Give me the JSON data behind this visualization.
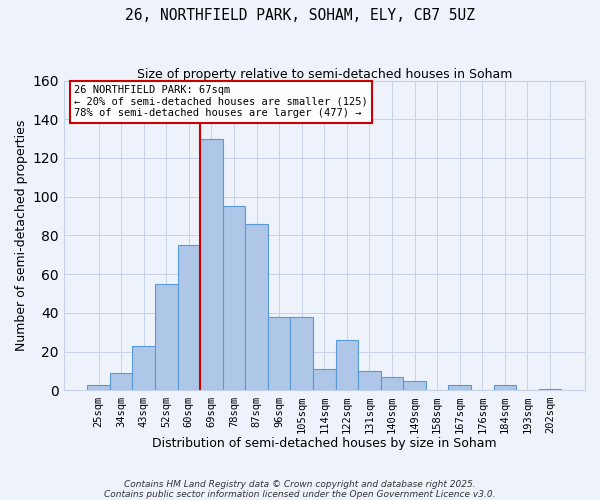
{
  "title": "26, NORTHFIELD PARK, SOHAM, ELY, CB7 5UZ",
  "subtitle": "Size of property relative to semi-detached houses in Soham",
  "xlabel": "Distribution of semi-detached houses by size in Soham",
  "ylabel": "Number of semi-detached properties",
  "bar_labels": [
    "25sqm",
    "34sqm",
    "43sqm",
    "52sqm",
    "60sqm",
    "69sqm",
    "78sqm",
    "87sqm",
    "96sqm",
    "105sqm",
    "114sqm",
    "122sqm",
    "131sqm",
    "140sqm",
    "149sqm",
    "158sqm",
    "167sqm",
    "176sqm",
    "184sqm",
    "193sqm",
    "202sqm"
  ],
  "bar_values": [
    3,
    9,
    23,
    55,
    75,
    130,
    95,
    86,
    38,
    38,
    11,
    26,
    10,
    7,
    5,
    0,
    3,
    0,
    3,
    0,
    1
  ],
  "bar_color": "#aec6e8",
  "bar_edge_color": "#5b9bd5",
  "bg_color": "#eef2fa",
  "grid_color": "#c5d3ea",
  "vline_color": "#cc0000",
  "vline_x_index": 5,
  "annotation_title": "26 NORTHFIELD PARK: 67sqm",
  "annotation_line1": "← 20% of semi-detached houses are smaller (125)",
  "annotation_line2": "78% of semi-detached houses are larger (477) →",
  "ylim": [
    0,
    160
  ],
  "yticks": [
    0,
    20,
    40,
    60,
    80,
    100,
    120,
    140,
    160
  ],
  "footer1": "Contains HM Land Registry data © Crown copyright and database right 2025.",
  "footer2": "Contains public sector information licensed under the Open Government Licence v3.0."
}
